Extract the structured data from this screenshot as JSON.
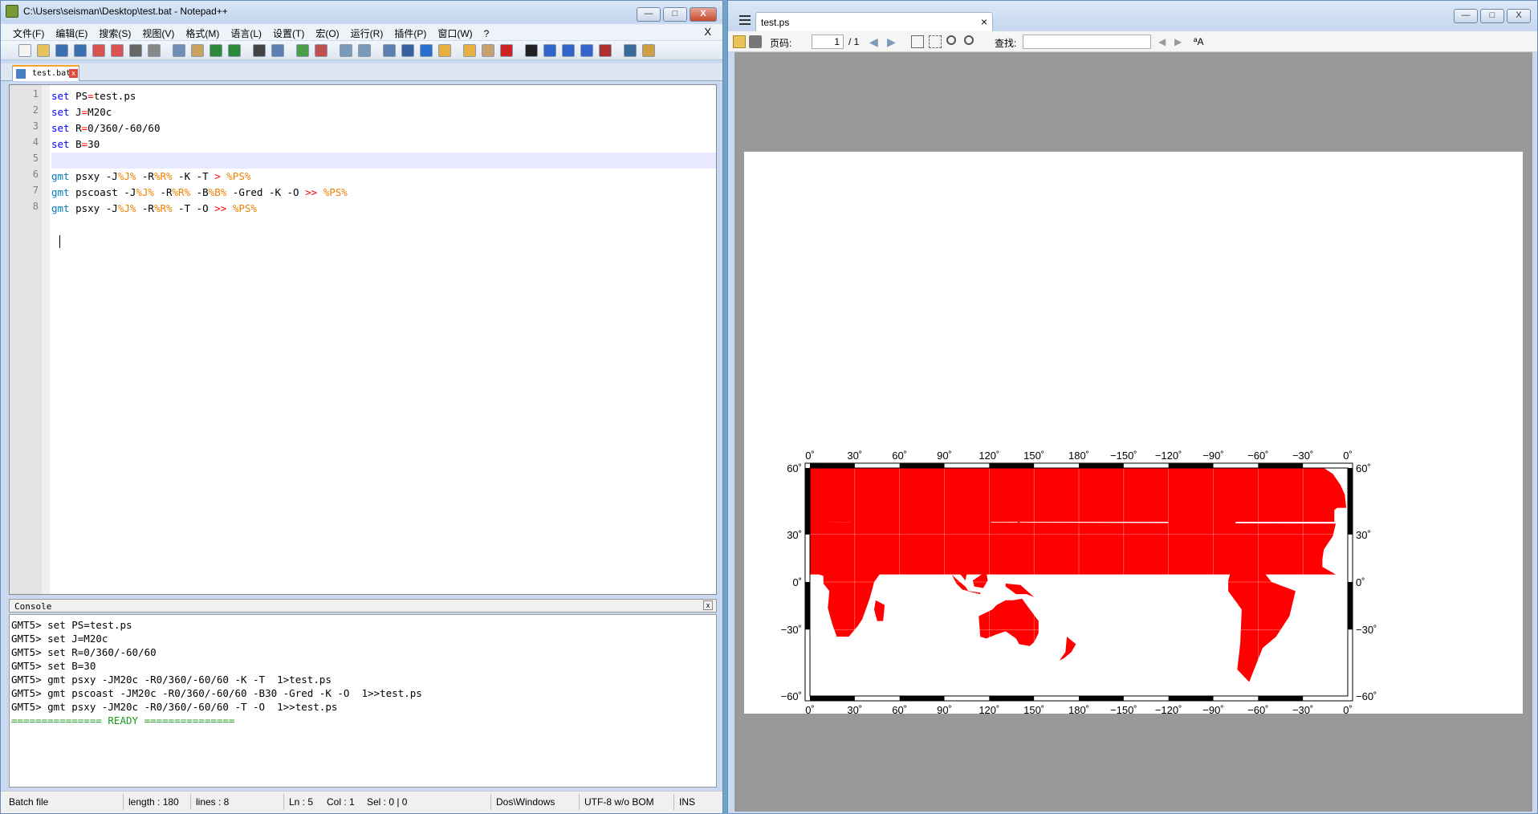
{
  "npp": {
    "title": "C:\\Users\\seisman\\Desktop\\test.bat - Notepad++",
    "menu": [
      "文件(F)",
      "编辑(E)",
      "搜索(S)",
      "视图(V)",
      "格式(M)",
      "语言(L)",
      "设置(T)",
      "宏(O)",
      "运行(R)",
      "插件(P)",
      "窗口(W)",
      "?"
    ],
    "menu_close": "X",
    "tab_name": "test.bat",
    "line_numbers": [
      "1",
      "2",
      "3",
      "4",
      "5",
      "6",
      "7",
      "8"
    ],
    "code": [
      [
        {
          "t": "set",
          "c": "kw"
        },
        {
          "t": " PS"
        },
        {
          "t": "=",
          "c": "op"
        },
        {
          "t": "test.ps"
        }
      ],
      [
        {
          "t": "set",
          "c": "kw"
        },
        {
          "t": " J"
        },
        {
          "t": "=",
          "c": "op"
        },
        {
          "t": "M20c"
        }
      ],
      [
        {
          "t": "set",
          "c": "kw"
        },
        {
          "t": " R"
        },
        {
          "t": "=",
          "c": "op"
        },
        {
          "t": "0/360/-60/60"
        }
      ],
      [
        {
          "t": "set",
          "c": "kw"
        },
        {
          "t": " B"
        },
        {
          "t": "=",
          "c": "op"
        },
        {
          "t": "30"
        }
      ],
      [],
      [
        {
          "t": "gmt",
          "c": "kwg"
        },
        {
          "t": " psxy -J"
        },
        {
          "t": "%J%",
          "c": "var"
        },
        {
          "t": " -R"
        },
        {
          "t": "%R%",
          "c": "var"
        },
        {
          "t": " -K -T "
        },
        {
          "t": ">",
          "c": "op"
        },
        {
          "t": " "
        },
        {
          "t": "%PS%",
          "c": "var"
        }
      ],
      [
        {
          "t": "gmt",
          "c": "kwg"
        },
        {
          "t": " pscoast -J"
        },
        {
          "t": "%J%",
          "c": "var"
        },
        {
          "t": " -R"
        },
        {
          "t": "%R%",
          "c": "var"
        },
        {
          "t": " -B"
        },
        {
          "t": "%B%",
          "c": "var"
        },
        {
          "t": " -Gred -K -O "
        },
        {
          "t": ">>",
          "c": "op"
        },
        {
          "t": " "
        },
        {
          "t": "%PS%",
          "c": "var"
        }
      ],
      [
        {
          "t": "gmt",
          "c": "kwg"
        },
        {
          "t": " psxy -J"
        },
        {
          "t": "%J%",
          "c": "var"
        },
        {
          "t": " -R"
        },
        {
          "t": "%R%",
          "c": "var"
        },
        {
          "t": " -T -O "
        },
        {
          "t": ">>",
          "c": "op"
        },
        {
          "t": " "
        },
        {
          "t": "%PS%",
          "c": "var"
        }
      ]
    ],
    "console_title": "Console",
    "console_lines": [
      "GMT5> set PS=test.ps",
      "GMT5> set J=M20c",
      "GMT5> set R=0/360/-60/60",
      "GMT5> set B=30",
      "GMT5> gmt psxy -JM20c -R0/360/-60/60 -K -T  1>test.ps",
      "GMT5> gmt pscoast -JM20c -R0/360/-60/60 -B30 -Gred -K -O  1>>test.ps",
      "GMT5> gmt psxy -JM20c -R0/360/-60/60 -T -O  1>>test.ps"
    ],
    "console_ready": "=============== READY ===============",
    "status": {
      "filetype": "Batch file",
      "length": "length : 180",
      "lines": "lines : 8",
      "ln": "Ln : 5",
      "col": "Col : 1",
      "sel": "Sel : 0 | 0",
      "eol": "Dos\\Windows",
      "encoding": "UTF-8 w/o BOM",
      "mode": "INS"
    },
    "win_buttons": {
      "min": "—",
      "max": "□",
      "close": "X"
    }
  },
  "viewer": {
    "tab_name": "test.ps",
    "tab_close": "×",
    "page_label": "页码:",
    "page_value": "1",
    "page_total": "/ 1",
    "find_label": "查找:",
    "find_value": "",
    "case_label": "ªA"
  },
  "map": {
    "lon_labels_top": [
      "0˚",
      "30˚",
      "60˚",
      "90˚",
      "120˚",
      "150˚",
      "180˚",
      "−150˚",
      "−120˚",
      "−90˚",
      "−60˚",
      "−30˚",
      "0˚"
    ],
    "lon_labels_bottom": [
      "0˚",
      "30˚",
      "60˚",
      "90˚",
      "120˚",
      "150˚",
      "180˚",
      "−150˚",
      "−120˚",
      "−90˚",
      "−60˚",
      "−30˚",
      "0˚"
    ],
    "lat_labels_left": [
      "60˚",
      "30˚",
      "0˚",
      "−30˚",
      "−60˚"
    ],
    "lat_labels_right": [
      "60˚",
      "30˚",
      "0˚",
      "−30˚",
      "−60˚"
    ],
    "land_color": "#ff0000"
  }
}
